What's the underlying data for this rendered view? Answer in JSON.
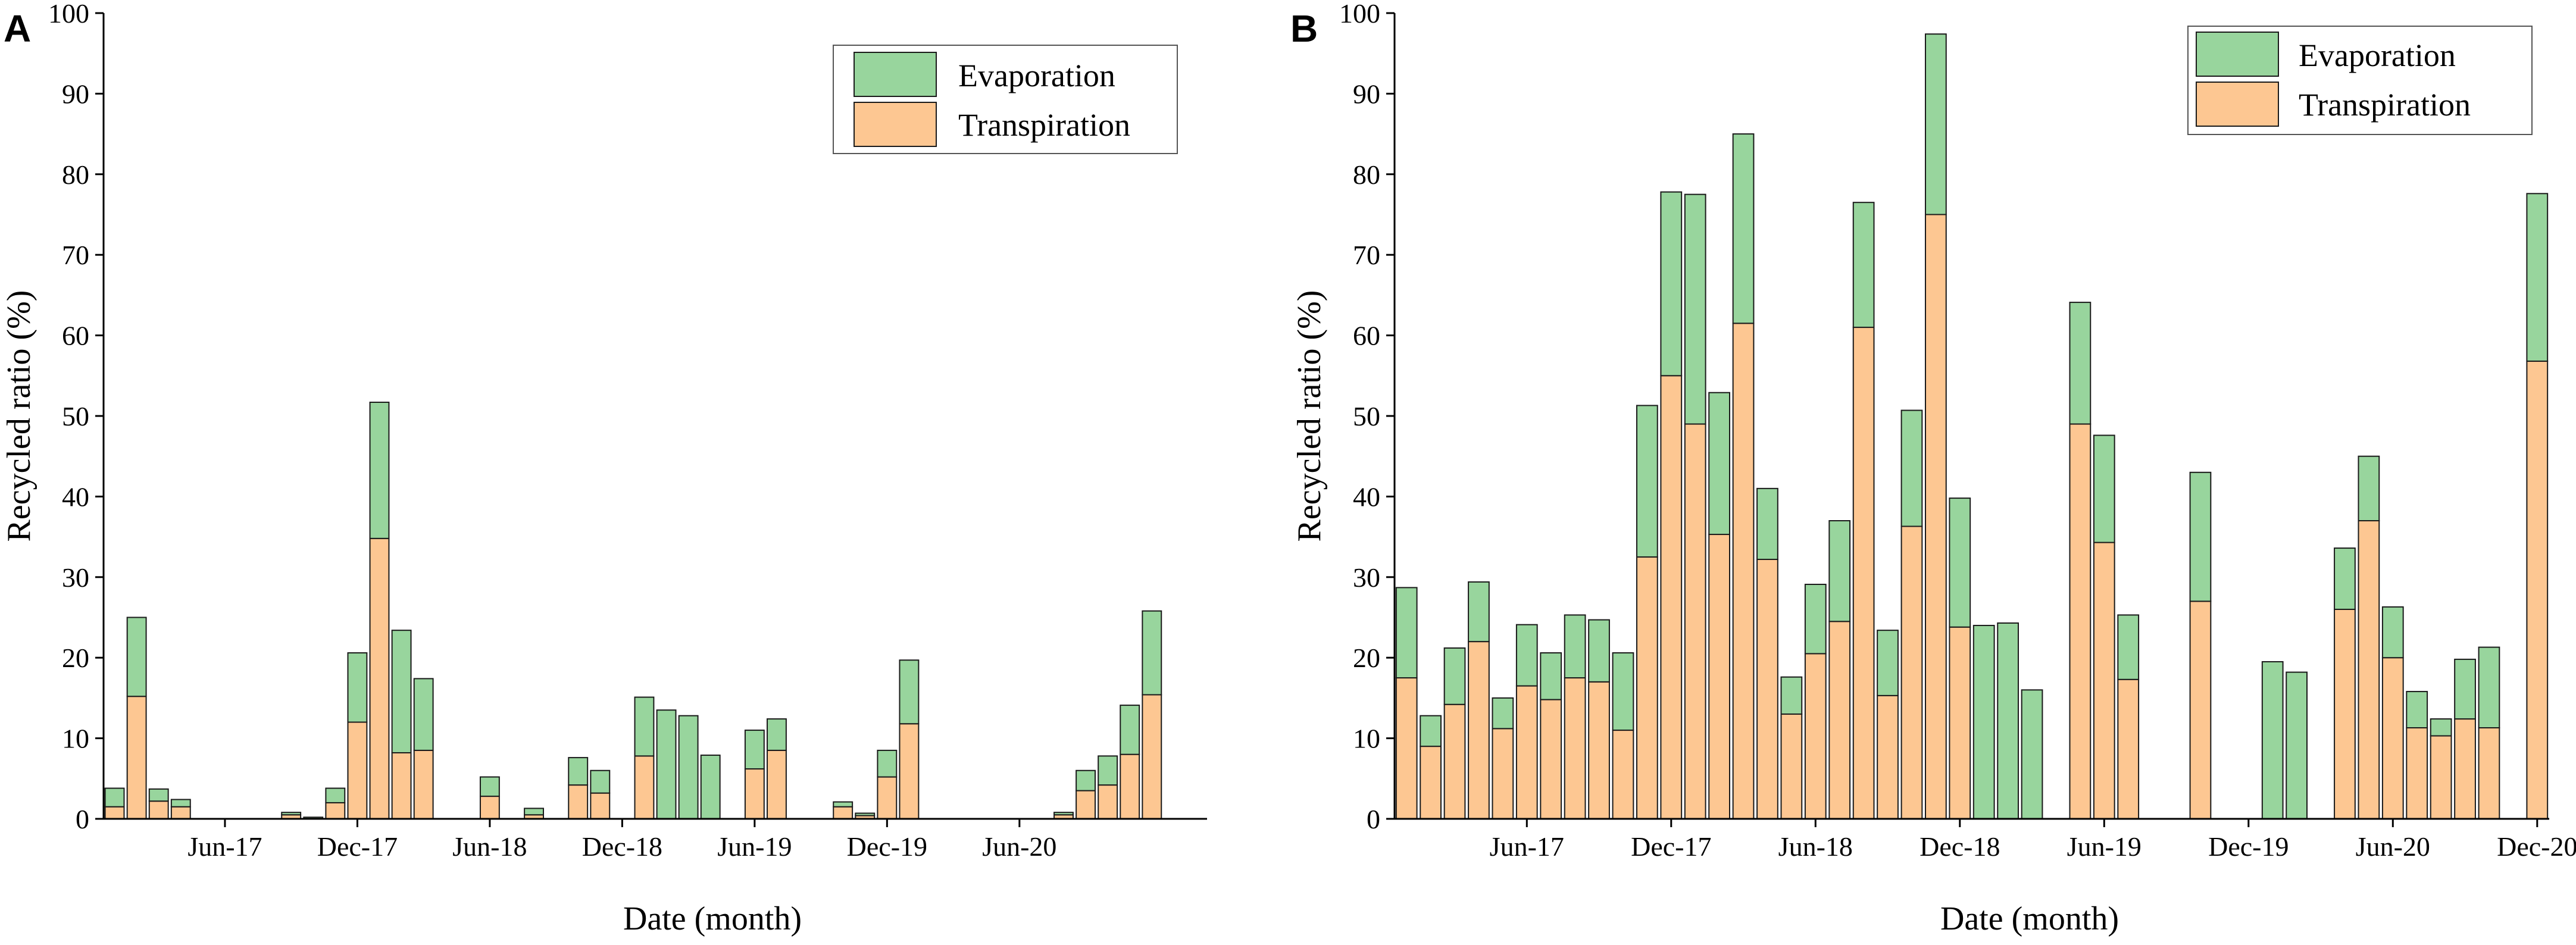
{
  "figure": {
    "panel_letters": [
      "A",
      "B"
    ]
  },
  "colors": {
    "evaporation": "#98d59d",
    "transpiration": "#fdc792",
    "stroke": "#1a1a1a"
  },
  "chart_data": [
    {
      "type": "bar",
      "stacked": true,
      "panel": "A",
      "title": "",
      "xlabel": "Date (month)",
      "ylabel": "Recycled ratio (%)",
      "ylim": [
        0,
        100
      ],
      "yticks": [
        0,
        10,
        20,
        30,
        40,
        50,
        60,
        70,
        80,
        90,
        100
      ],
      "x_range": [
        0,
        50
      ],
      "xticks": [
        {
          "pos": 5.5,
          "label": "Jun-17"
        },
        {
          "pos": 11.5,
          "label": "Dec-17"
        },
        {
          "pos": 17.5,
          "label": "Jun-18"
        },
        {
          "pos": 23.5,
          "label": "Dec-18"
        },
        {
          "pos": 29.5,
          "label": "Jun-19"
        },
        {
          "pos": 35.5,
          "label": "Dec-19"
        },
        {
          "pos": 41.5,
          "label": "Jun-20"
        }
      ],
      "legend": {
        "position": "top-right",
        "entries": [
          "Evaporation",
          "Transpiration"
        ]
      },
      "series": [
        {
          "name": "Transpiration",
          "values": [
            1.5,
            15.2,
            2.2,
            1.5,
            0,
            0,
            0,
            0,
            0.5,
            0,
            2.0,
            12.0,
            34.8,
            8.2,
            8.5,
            0,
            0,
            2.8,
            0,
            0.5,
            0,
            4.2,
            3.2,
            0,
            7.8,
            0,
            0,
            0,
            0,
            6.2,
            8.5,
            0,
            0,
            1.5,
            0.4,
            5.2,
            11.8,
            0,
            0,
            0,
            0,
            0,
            0,
            0.5,
            3.5,
            4.2,
            8.0,
            15.4
          ]
        },
        {
          "name": "Evaporation",
          "values": [
            2.3,
            9.8,
            1.5,
            0.9,
            0,
            0,
            0,
            0,
            0.3,
            0.2,
            1.8,
            8.6,
            16.9,
            15.2,
            8.9,
            0,
            0,
            2.4,
            0,
            0.8,
            0,
            3.4,
            2.8,
            0,
            7.3,
            13.5,
            12.8,
            7.9,
            0,
            4.8,
            3.9,
            0,
            0,
            0.6,
            0.3,
            3.3,
            7.9,
            0,
            0,
            0,
            0,
            0,
            0,
            0.3,
            2.5,
            3.6,
            6.1,
            10.4
          ]
        }
      ]
    },
    {
      "type": "bar",
      "stacked": true,
      "panel": "B",
      "title": "",
      "xlabel": "Date (month)",
      "ylabel": "Recycled ratio (%)",
      "ylim": [
        0,
        100
      ],
      "yticks": [
        0,
        10,
        20,
        30,
        40,
        50,
        60,
        70,
        80,
        90,
        100
      ],
      "x_range": [
        0,
        48
      ],
      "xticks": [
        {
          "pos": 5.5,
          "label": "Jun-17"
        },
        {
          "pos": 11.5,
          "label": "Dec-17"
        },
        {
          "pos": 17.5,
          "label": "Jun-18"
        },
        {
          "pos": 23.5,
          "label": "Dec-18"
        },
        {
          "pos": 29.5,
          "label": "Jun-19"
        },
        {
          "pos": 35.5,
          "label": "Dec-19"
        },
        {
          "pos": 41.5,
          "label": "Jun-20"
        },
        {
          "pos": 47.5,
          "label": "Dec-20"
        }
      ],
      "legend": {
        "position": "top-right",
        "entries": [
          "Evaporation",
          "Transpiration"
        ]
      },
      "series": [
        {
          "name": "Transpiration",
          "values": [
            17.5,
            9.0,
            14.2,
            22.0,
            11.2,
            16.5,
            14.8,
            17.5,
            17.0,
            11.0,
            32.5,
            55.0,
            49.0,
            35.3,
            61.5,
            32.2,
            13.0,
            20.5,
            24.5,
            61.0,
            15.3,
            36.3,
            75.0,
            23.8,
            0,
            0,
            0,
            0,
            49.0,
            34.3,
            17.3,
            0,
            0,
            27.0,
            0,
            0,
            0,
            0,
            0,
            26.0,
            37.0,
            20.0,
            11.3,
            10.3,
            12.4,
            11.3,
            0,
            56.8
          ]
        },
        {
          "name": "Evaporation",
          "values": [
            11.2,
            3.8,
            7.0,
            7.4,
            3.8,
            7.6,
            5.8,
            7.8,
            7.7,
            9.6,
            18.8,
            22.8,
            28.5,
            17.6,
            23.5,
            8.8,
            4.6,
            8.6,
            12.5,
            15.5,
            8.1,
            14.4,
            22.4,
            16.0,
            24.0,
            24.3,
            16.0,
            0,
            15.1,
            13.3,
            8.0,
            0,
            0,
            16.0,
            0,
            0,
            19.5,
            18.2,
            0,
            7.6,
            8.0,
            6.3,
            4.5,
            2.1,
            7.4,
            10.0,
            0,
            20.8
          ]
        }
      ]
    }
  ]
}
